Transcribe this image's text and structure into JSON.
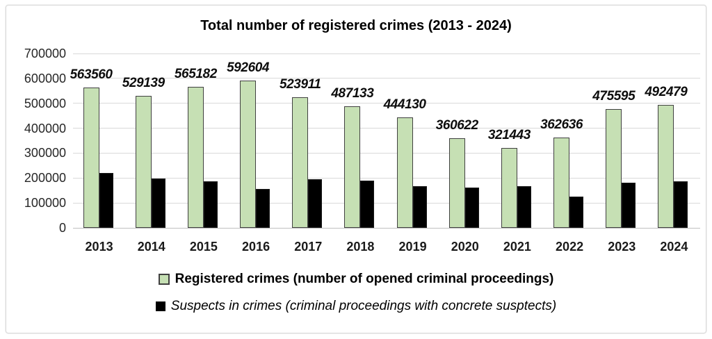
{
  "window": {
    "background": "#ffffff",
    "frame_border_color": "#d9d9d9"
  },
  "chart_data": {
    "type": "bar",
    "title": "Total number of registered crimes (2013 - 2024)",
    "categories": [
      "2013",
      "2014",
      "2015",
      "2016",
      "2017",
      "2018",
      "2019",
      "2020",
      "2021",
      "2022",
      "2023",
      "2024"
    ],
    "series": [
      {
        "name": "Registered crimes (number of opened criminal proceedings)",
        "color": "#c6e0b4",
        "border_color": "#404040",
        "values": [
          563560,
          529139,
          565182,
          592604,
          523911,
          487133,
          444130,
          360622,
          321443,
          362636,
          475595,
          492479
        ],
        "data_labels": [
          "563560",
          "529139",
          "565182",
          "592604",
          "523911",
          "487133",
          "444130",
          "360622",
          "321443",
          "362636",
          "475595",
          "492479"
        ],
        "data_labels_visible": true
      },
      {
        "name": "Suspects in crimes (criminal proceedings with concrete susptects)",
        "color": "#000000",
        "values": [
          220000,
          198000,
          188000,
          157000,
          196000,
          191000,
          166000,
          163000,
          167000,
          126000,
          181000,
          186000
        ],
        "data_labels_visible": false
      }
    ],
    "ylim": [
      0,
      700000
    ],
    "ytick_step": 100000,
    "yticks_top_to_bottom": [
      "700000",
      "600000",
      "500000",
      "400000",
      "300000",
      "200000",
      "100000",
      "0"
    ],
    "grid": "horizontal",
    "gridline_color": "#d9d9d9",
    "axis_line_color": "#bfbfbf",
    "legend_position": "bottom"
  }
}
